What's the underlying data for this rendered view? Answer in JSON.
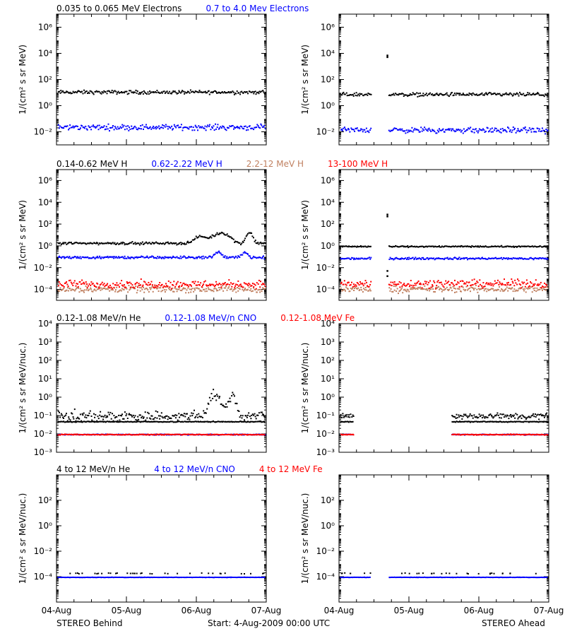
{
  "colors": {
    "black": "#000000",
    "blue": "#0000ff",
    "tan": "#c08060",
    "red": "#ff0000"
  },
  "footer": {
    "left": "STEREO Behind",
    "center": "Start:  4-Aug-2009 00:00 UTC",
    "right": "STEREO Ahead"
  },
  "x_tick_labels": [
    "04-Aug",
    "05-Aug",
    "06-Aug",
    "07-Aug"
  ],
  "chart_data": [
    {
      "type": "scatter",
      "row": 1,
      "spacecraft": "STEREO Behind",
      "legend": [
        {
          "text": "0.035 to 0.065 MeV Electrons",
          "color": "#000000"
        },
        {
          "text": "0.7 to 4.0 Mev Electrons",
          "color": "#0000ff"
        }
      ],
      "ylabel": "1/(cm² s sr MeV)",
      "y_scale": "log",
      "ylim": [
        0.001,
        10000000
      ],
      "y_ticks": [
        {
          "value": 0.01,
          "label": "10⁻²"
        },
        {
          "value": 1,
          "label": "10⁰"
        },
        {
          "value": 100,
          "label": "10²"
        },
        {
          "value": 10000,
          "label": "10⁴"
        },
        {
          "value": 1000000,
          "label": "10⁶"
        }
      ],
      "xlim": [
        0,
        3
      ],
      "gaps": [],
      "spikes": [],
      "series": [
        {
          "color": "#000000",
          "level": 12,
          "spread": 0.12,
          "bumps": []
        },
        {
          "color": "#0000ff",
          "level": 0.025,
          "spread": 0.18,
          "bumps": []
        }
      ]
    },
    {
      "type": "scatter",
      "row": 1,
      "spacecraft": "STEREO Ahead",
      "legend": [],
      "ylabel": "1/(cm² s sr MeV)",
      "y_scale": "log",
      "ylim": [
        0.001,
        10000000
      ],
      "y_ticks": [
        {
          "value": 0.01,
          "label": "10⁻²"
        },
        {
          "value": 1,
          "label": "10⁰"
        },
        {
          "value": 100,
          "label": "10²"
        },
        {
          "value": 10000,
          "label": "10⁴"
        },
        {
          "value": 1000000,
          "label": "10⁶"
        }
      ],
      "xlim": [
        0,
        3
      ],
      "gaps": [
        [
          0.45,
          0.7
        ]
      ],
      "spikes": [
        {
          "x": 0.68,
          "values": [
            8000,
            6000
          ]
        }
      ],
      "series": [
        {
          "color": "#000000",
          "level": 8,
          "spread": 0.12,
          "bumps": []
        },
        {
          "color": "#0000ff",
          "level": 0.015,
          "spread": 0.18,
          "bumps": []
        }
      ]
    },
    {
      "type": "scatter",
      "row": 2,
      "spacecraft": "STEREO Behind",
      "legend": [
        {
          "text": "0.14-0.62 MeV H",
          "color": "#000000"
        },
        {
          "text": "0.62-2.22 MeV H",
          "color": "#0000ff"
        },
        {
          "text": "2.2-12 MeV H",
          "color": "#c08060"
        },
        {
          "text": "13-100 MeV H",
          "color": "#ff0000"
        }
      ],
      "ylabel": "1/(cm² s sr MeV)",
      "y_scale": "log",
      "ylim": [
        1e-05,
        10000000
      ],
      "y_ticks": [
        {
          "value": 0.0001,
          "label": "10⁻⁴"
        },
        {
          "value": 0.01,
          "label": "10⁻²"
        },
        {
          "value": 1,
          "label": "10⁰"
        },
        {
          "value": 100,
          "label": "10²"
        },
        {
          "value": 10000,
          "label": "10⁴"
        },
        {
          "value": 1000000,
          "label": "10⁶"
        }
      ],
      "xlim": [
        0,
        3
      ],
      "gaps": [],
      "spikes": [],
      "series": [
        {
          "color": "#000000",
          "level": 2,
          "spread": 0.1,
          "bumps": [
            {
              "x": 2.05,
              "w": 0.1,
              "a": 3
            },
            {
              "x": 2.35,
              "w": 0.12,
              "a": 8
            },
            {
              "x": 2.75,
              "w": 0.05,
              "a": 8
            }
          ]
        },
        {
          "color": "#0000ff",
          "level": 0.1,
          "spread": 0.1,
          "bumps": [
            {
              "x": 2.3,
              "w": 0.06,
              "a": 2
            },
            {
              "x": 2.68,
              "w": 0.05,
              "a": 2
            }
          ]
        },
        {
          "color": "#c08060",
          "level": 0.00012,
          "spread": 0.25,
          "bumps": []
        },
        {
          "color": "#ff0000",
          "level": 0.00035,
          "spread": 0.3,
          "bumps": []
        }
      ]
    },
    {
      "type": "scatter",
      "row": 2,
      "spacecraft": "STEREO Ahead",
      "legend": [],
      "ylabel": "1/(cm² s sr MeV)",
      "y_scale": "log",
      "ylim": [
        1e-05,
        10000000
      ],
      "y_ticks": [
        {
          "value": 0.0001,
          "label": "10⁻⁴"
        },
        {
          "value": 0.01,
          "label": "10⁻²"
        },
        {
          "value": 1,
          "label": "10⁰"
        },
        {
          "value": 100,
          "label": "10²"
        },
        {
          "value": 10000,
          "label": "10⁴"
        },
        {
          "value": 1000000,
          "label": "10⁶"
        }
      ],
      "xlim": [
        0,
        3
      ],
      "gaps": [
        [
          0.45,
          0.7
        ]
      ],
      "spikes": [
        {
          "x": 0.68,
          "values": [
            900,
            600,
            0.006,
            0.002
          ]
        }
      ],
      "series": [
        {
          "color": "#000000",
          "level": 1,
          "spread": 0.05,
          "bumps": []
        },
        {
          "color": "#0000ff",
          "level": 0.08,
          "spread": 0.08,
          "bumps": []
        },
        {
          "color": "#c08060",
          "level": 0.00012,
          "spread": 0.25,
          "bumps": []
        },
        {
          "color": "#ff0000",
          "level": 0.0004,
          "spread": 0.3,
          "bumps": []
        }
      ]
    },
    {
      "type": "scatter",
      "row": 3,
      "spacecraft": "STEREO Behind",
      "legend": [
        {
          "text": "0.12-1.08 MeV/n He",
          "color": "#000000"
        },
        {
          "text": "0.12-1.08 MeV/n CNO",
          "color": "#0000ff"
        },
        {
          "text": "0.12-1.08 MeV Fe",
          "color": "#ff0000"
        }
      ],
      "ylabel": "1/(cm² s sr MeV/nuc.)",
      "y_scale": "log",
      "ylim": [
        0.001,
        10000
      ],
      "y_ticks": [
        {
          "value": 0.001,
          "label": "10⁻³"
        },
        {
          "value": 0.01,
          "label": "10⁻²"
        },
        {
          "value": 0.1,
          "label": "10⁻¹"
        },
        {
          "value": 1,
          "label": "10⁰"
        },
        {
          "value": 10,
          "label": "10¹"
        },
        {
          "value": 100,
          "label": "10²"
        },
        {
          "value": 1000,
          "label": "10³"
        },
        {
          "value": 10000,
          "label": "10⁴"
        }
      ],
      "xlim": [
        0,
        3
      ],
      "gaps": [],
      "spikes": [],
      "series": [
        {
          "color": "#000000",
          "level": 0.1,
          "spread": 0.25,
          "bumps": [
            {
              "x": 2.25,
              "w": 0.08,
              "a": 15
            },
            {
              "x": 2.5,
              "w": 0.06,
              "a": 12
            }
          ]
        },
        {
          "color": "#000000",
          "level": 0.05,
          "spread": 0.02,
          "bumps": []
        },
        {
          "color": "#0000ff",
          "level": 0.01,
          "spread": 0.02,
          "bumps": []
        },
        {
          "color": "#ff0000",
          "level": 0.01,
          "spread": 0.02,
          "bumps": []
        }
      ]
    },
    {
      "type": "scatter",
      "row": 3,
      "spacecraft": "STEREO Ahead",
      "legend": [],
      "ylabel": "1/(cm² s sr MeV/nuc.)",
      "y_scale": "log",
      "ylim": [
        0.001,
        10000
      ],
      "y_ticks": [
        {
          "value": 0.001,
          "label": "10⁻³"
        },
        {
          "value": 0.01,
          "label": "10⁻²"
        },
        {
          "value": 0.1,
          "label": "10⁻¹"
        },
        {
          "value": 1,
          "label": "10⁰"
        },
        {
          "value": 10,
          "label": "10¹"
        },
        {
          "value": 100,
          "label": "10²"
        },
        {
          "value": 1000,
          "label": "10³"
        },
        {
          "value": 10000,
          "label": "10⁴"
        }
      ],
      "xlim": [
        0,
        3
      ],
      "gaps": [
        [
          0.2,
          1.6
        ]
      ],
      "spikes": [],
      "series": [
        {
          "color": "#000000",
          "level": 0.1,
          "spread": 0.15,
          "bumps": []
        },
        {
          "color": "#000000",
          "level": 0.05,
          "spread": 0.02,
          "bumps": []
        },
        {
          "color": "#0000ff",
          "level": 0.01,
          "spread": 0.02,
          "bumps": []
        },
        {
          "color": "#ff0000",
          "level": 0.01,
          "spread": 0.02,
          "bumps": []
        }
      ]
    },
    {
      "type": "scatter",
      "row": 4,
      "spacecraft": "STEREO Behind",
      "legend": [
        {
          "text": "4 to 12 MeV/n He",
          "color": "#000000"
        },
        {
          "text": "4 to 12 MeV/n CNO",
          "color": "#0000ff"
        },
        {
          "text": "4 to 12 MeV Fe",
          "color": "#ff0000"
        }
      ],
      "ylabel": "1/(cm² s sr MeV/nuc.)",
      "y_scale": "log",
      "ylim": [
        1e-06,
        10000
      ],
      "y_ticks": [
        {
          "value": 0.0001,
          "label": "10⁻⁴"
        },
        {
          "value": 0.01,
          "label": "10⁻²"
        },
        {
          "value": 1,
          "label": "10⁰"
        },
        {
          "value": 100,
          "label": "10²"
        }
      ],
      "xlim": [
        0,
        3
      ],
      "gaps": [],
      "spikes": [],
      "series": [
        {
          "color": "#000000",
          "level": 0.0002,
          "spread": 0.03,
          "sparse": true,
          "bumps": []
        },
        {
          "color": "#0000ff",
          "level": 0.0001,
          "spread": 0.01,
          "bumps": []
        }
      ]
    },
    {
      "type": "scatter",
      "row": 4,
      "spacecraft": "STEREO Ahead",
      "legend": [],
      "ylabel": "1/(cm² s sr MeV/nuc.)",
      "y_scale": "log",
      "ylim": [
        1e-06,
        10000
      ],
      "y_ticks": [
        {
          "value": 0.0001,
          "label": "10⁻⁴"
        },
        {
          "value": 0.01,
          "label": "10⁻²"
        },
        {
          "value": 1,
          "label": "10⁰"
        },
        {
          "value": 100,
          "label": "10²"
        }
      ],
      "xlim": [
        0,
        3
      ],
      "gaps": [
        [
          0.45,
          0.7
        ]
      ],
      "spikes": [],
      "series": [
        {
          "color": "#000000",
          "level": 0.0002,
          "spread": 0.03,
          "sparse": true,
          "bumps": []
        },
        {
          "color": "#0000ff",
          "level": 0.0001,
          "spread": 0.01,
          "bumps": []
        }
      ]
    }
  ]
}
